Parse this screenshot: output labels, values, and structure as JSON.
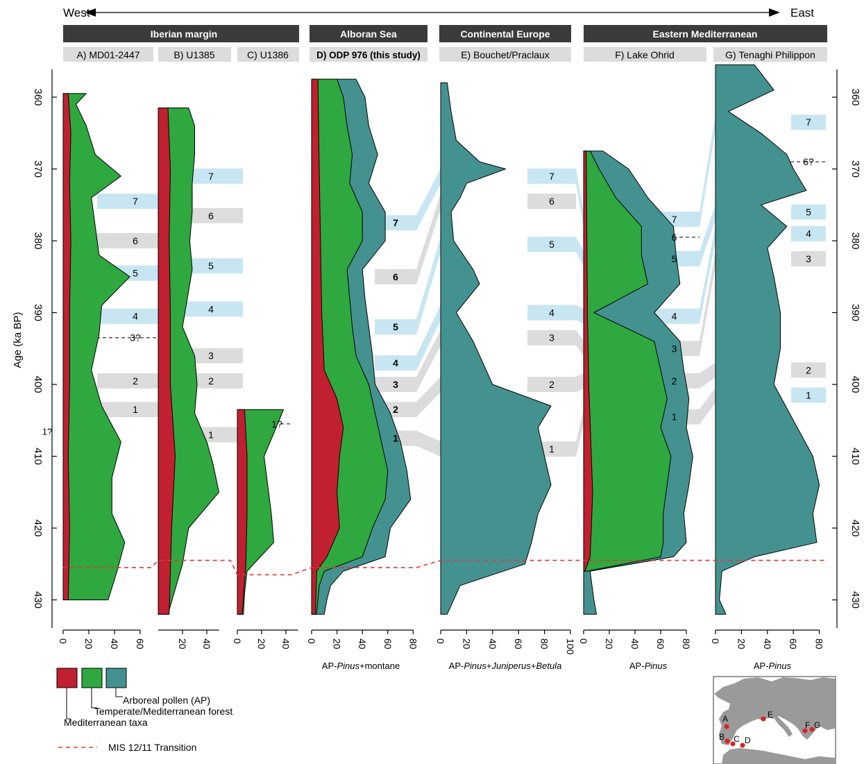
{
  "header": {
    "west": "West",
    "east": "East",
    "regions": [
      "Iberian margin",
      "Alboran Sea",
      "Continental Europe",
      "Eastern Mediterranean"
    ]
  },
  "y_axis": {
    "label": "Age (ka BP)",
    "ticks": [
      360,
      370,
      380,
      390,
      400,
      410,
      420,
      430
    ]
  },
  "x_axis_labels": {
    "D": [
      "AP-",
      "Pinus",
      "+montane"
    ],
    "E": [
      "AP-",
      "Pinus",
      "+",
      "Juniperus",
      "+",
      "Betula"
    ],
    "F": [
      "AP-",
      "Pinus"
    ],
    "G": [
      "AP-",
      "Pinus"
    ]
  },
  "legend": {
    "items": [
      {
        "label": "Arboreal pollen (AP)",
        "color": "#44928f"
      },
      {
        "label": "Temperate/Mediterranean forest",
        "color": "#2ea83f"
      },
      {
        "label": "Mediterranean taxa",
        "color": "#c0202f"
      }
    ],
    "transition": "MIS 12/11 Transition"
  },
  "map": {
    "sites": [
      "A",
      "B",
      "C",
      "D",
      "E",
      "F",
      "G"
    ]
  },
  "chart_data": {
    "type": "area",
    "y_unit": "ka BP",
    "ylim": [
      355,
      433
    ],
    "mis_transition_ka": {
      "A": 425.5,
      "B": 424.5,
      "C": 426.5,
      "D": 425.5,
      "E": 424.5,
      "F": 424.5,
      "G": 424.5
    },
    "cores": [
      {
        "id": "A",
        "label": "A) MD01-2447",
        "xticks": [
          0,
          20,
          40,
          60
        ],
        "markers": [
          {
            "label": "7",
            "age": 374.5,
            "type": "warm"
          },
          {
            "label": "6",
            "age": 380,
            "type": "cold"
          },
          {
            "label": "5",
            "age": 384.5,
            "type": "warm"
          },
          {
            "label": "4",
            "age": 390.5,
            "type": "warm"
          },
          {
            "label": "3?",
            "age": 393.5,
            "type": "dashed"
          },
          {
            "label": "2",
            "age": 399.5,
            "type": "cold"
          },
          {
            "label": "1",
            "age": 403.5,
            "type": "cold"
          },
          {
            "label": "1?",
            "age": 406.5,
            "type": "plain"
          }
        ],
        "series": [
          {
            "name": "Temperate/Mediterranean forest",
            "ages": [
              359.5,
              361,
              364,
              368,
              371,
              374,
              378,
              382,
              385,
              389,
              393,
              398,
              403,
              408,
              413,
              418,
              422,
              426,
              430
            ],
            "values": [
              18,
              10,
              18,
              25,
              45,
              22,
              25,
              28,
              52,
              30,
              28,
              22,
              30,
              45,
              38,
              38,
              48,
              42,
              35
            ]
          },
          {
            "name": "Mediterranean taxa",
            "ages": [
              359.5,
              365,
              372,
              380,
              390,
              400,
              410,
              420,
              430
            ],
            "values": [
              4,
              6,
              5,
              6,
              5,
              5,
              4,
              5,
              4
            ]
          }
        ]
      },
      {
        "id": "B",
        "label": "B) U1385",
        "xticks": [
          20,
          40
        ],
        "markers": [
          {
            "label": "7",
            "age": 371,
            "type": "warm"
          },
          {
            "label": "6",
            "age": 376.5,
            "type": "cold"
          },
          {
            "label": "5",
            "age": 383.5,
            "type": "warm"
          },
          {
            "label": "4",
            "age": 389.5,
            "type": "warm"
          },
          {
            "label": "3",
            "age": 396,
            "type": "cold"
          },
          {
            "label": "2",
            "age": 399.5,
            "type": "cold"
          },
          {
            "label": "1",
            "age": 407,
            "type": "cold"
          }
        ],
        "series": [
          {
            "name": "Temperate/Mediterranean forest",
            "ages": [
              361.5,
              364,
              368,
              372,
              376,
              380,
              384,
              388,
              392,
              396,
              400,
              404,
              408,
              411,
              415,
              420,
              425,
              432
            ],
            "values": [
              25,
              30,
              30,
              28,
              28,
              26,
              28,
              24,
              20,
              30,
              32,
              30,
              40,
              45,
              50,
              25,
              20,
              8
            ]
          },
          {
            "name": "Mediterranean taxa",
            "ages": [
              361.5,
              370,
              380,
              390,
              400,
              410,
              420,
              432
            ],
            "values": [
              8,
              10,
              9,
              10,
              10,
              14,
              11,
              9
            ]
          }
        ]
      },
      {
        "id": "C",
        "label": "C) U1386",
        "xticks": [
          0,
          20,
          40
        ],
        "markers": [
          {
            "label": "1?",
            "age": 405.5,
            "type": "dashed"
          }
        ],
        "series": [
          {
            "name": "Temperate/Mediterranean forest",
            "ages": [
              403.5,
              406,
              410,
              414,
              418,
              422,
              426,
              429,
              432
            ],
            "values": [
              38,
              32,
              22,
              25,
              28,
              30,
              8,
              6,
              5
            ]
          },
          {
            "name": "Mediterranean taxa",
            "ages": [
              403.5,
              410,
              418,
              425,
              432
            ],
            "values": [
              6,
              8,
              8,
              7,
              4
            ]
          }
        ]
      },
      {
        "id": "D",
        "label": "D) ODP 976 (this study)",
        "xticks": [
          0,
          20,
          40,
          60,
          80
        ],
        "markers": [
          {
            "label": "7",
            "age": 377.5,
            "type": "warm",
            "bold": true
          },
          {
            "label": "6",
            "age": 385,
            "type": "cold",
            "bold": true
          },
          {
            "label": "5",
            "age": 392,
            "type": "warm",
            "bold": true
          },
          {
            "label": "4",
            "age": 397,
            "type": "warm",
            "bold": true
          },
          {
            "label": "3",
            "age": 400,
            "type": "cold",
            "bold": true
          },
          {
            "label": "2",
            "age": 403.5,
            "type": "cold",
            "bold": true
          },
          {
            "label": "1",
            "age": 407.5,
            "type": "cold",
            "bold": true
          }
        ],
        "series": [
          {
            "name": "Arboreal pollen (AP)",
            "ages": [
              357.5,
              360,
              364,
              368,
              372,
              376,
              380,
              384,
              388,
              392,
              396,
              400,
              404,
              408,
              412,
              416,
              420,
              424,
              426,
              428,
              430,
              432
            ],
            "values": [
              35,
              42,
              45,
              52,
              45,
              58,
              58,
              40,
              42,
              45,
              48,
              50,
              62,
              70,
              75,
              78,
              62,
              58,
              25,
              15,
              12,
              10
            ]
          },
          {
            "name": "Temperate/Mediterranean forest",
            "ages": [
              357.5,
              360,
              364,
              368,
              372,
              376,
              380,
              384,
              388,
              392,
              396,
              400,
              404,
              408,
              412,
              416,
              420,
              424,
              426,
              428,
              430,
              432
            ],
            "values": [
              20,
              25,
              28,
              32,
              30,
              40,
              40,
              28,
              30,
              32,
              35,
              45,
              50,
              55,
              60,
              58,
              48,
              40,
              10,
              6,
              5,
              4
            ]
          },
          {
            "name": "Mediterranean taxa",
            "ages": [
              357.5,
              370,
              380,
              390,
              398,
              402,
              406,
              410,
              415,
              420,
              424,
              426,
              432
            ],
            "values": [
              5,
              6,
              7,
              8,
              10,
              20,
              25,
              22,
              20,
              22,
              12,
              4,
              3
            ]
          }
        ]
      },
      {
        "id": "E",
        "label": "E) Bouchet/Praclaux",
        "xticks": [
          0,
          20,
          40,
          60,
          80,
          100
        ],
        "markers": [
          {
            "label": "7",
            "age": 371,
            "type": "warm"
          },
          {
            "label": "6",
            "age": 374.5,
            "type": "cold"
          },
          {
            "label": "5",
            "age": 380.5,
            "type": "warm"
          },
          {
            "label": "4",
            "age": 390,
            "type": "warm"
          },
          {
            "label": "3",
            "age": 393.5,
            "type": "cold"
          },
          {
            "label": "2",
            "age": 400,
            "type": "cold"
          },
          {
            "label": "1",
            "age": 409,
            "type": "cold"
          }
        ],
        "series": [
          {
            "name": "Arboreal pollen (AP)",
            "ages": [
              358,
              362,
              366,
              369,
              370,
              372,
              374,
              376,
              380,
              384,
              386,
              390,
              394,
              398,
              400,
              403,
              406,
              410,
              414,
              418,
              422,
              425,
              428,
              432
            ],
            "values": [
              5,
              8,
              12,
              30,
              50,
              20,
              15,
              8,
              10,
              25,
              30,
              12,
              25,
              35,
              40,
              85,
              75,
              80,
              85,
              75,
              70,
              65,
              15,
              5
            ]
          }
        ]
      },
      {
        "id": "F",
        "label": "F) Lake Ohrid",
        "xticks": [
          0,
          20,
          40,
          60,
          80
        ],
        "markers": [
          {
            "label": "7",
            "age": 377,
            "type": "warm"
          },
          {
            "label": "6",
            "age": 379.5,
            "type": "dashed"
          },
          {
            "label": "5",
            "age": 382.5,
            "type": "warm"
          },
          {
            "label": "4",
            "age": 390.5,
            "type": "warm"
          },
          {
            "label": "3",
            "age": 395,
            "type": "cold"
          },
          {
            "label": "2",
            "age": 399.5,
            "type": "cold"
          },
          {
            "label": "1",
            "age": 404.5,
            "type": "cold"
          }
        ],
        "series": [
          {
            "name": "Arboreal pollen (AP)",
            "ages": [
              367.5,
              370,
              374,
              378,
              382,
              386,
              390,
              394,
              398,
              402,
              406,
              410,
              414,
              418,
              422,
              424,
              426,
              430,
              432
            ],
            "values": [
              15,
              35,
              50,
              70,
              72,
              75,
              55,
              75,
              78,
              82,
              80,
              85,
              82,
              78,
              80,
              70,
              5,
              8,
              10
            ]
          },
          {
            "name": "Temperate/Mediterranean forest",
            "ages": [
              367.5,
              370,
              374,
              378,
              382,
              386,
              390,
              394,
              398,
              402,
              406,
              410,
              414,
              418,
              422,
              424,
              426
            ],
            "values": [
              5,
              12,
              25,
              45,
              45,
              50,
              8,
              55,
              60,
              65,
              60,
              68,
              65,
              62,
              62,
              60,
              3
            ]
          },
          {
            "name": "Mediterranean taxa",
            "ages": [
              367.5,
              390,
              400,
              405,
              410,
              415,
              420,
              424,
              426
            ],
            "values": [
              2,
              3,
              4,
              5,
              6,
              7,
              6,
              5,
              1
            ]
          }
        ]
      },
      {
        "id": "G",
        "label": "G) Tenaghi Philippon",
        "xticks": [
          0,
          20,
          40,
          60,
          80
        ],
        "markers": [
          {
            "label": "7",
            "age": 363.5,
            "type": "warm"
          },
          {
            "label": "6?",
            "age": 369,
            "type": "dashed"
          },
          {
            "label": "5",
            "age": 376,
            "type": "warm"
          },
          {
            "label": "4",
            "age": 379,
            "type": "warm"
          },
          {
            "label": "3",
            "age": 382.5,
            "type": "cold"
          },
          {
            "label": "2",
            "age": 398,
            "type": "cold"
          },
          {
            "label": "1",
            "age": 401.5,
            "type": "warm"
          }
        ],
        "series": [
          {
            "name": "Arboreal pollen (AP)",
            "ages": [
              355.5,
              359,
              362,
              365,
              368,
              370,
              373,
              375,
              378,
              381,
              385,
              390,
              395,
              400,
              405,
              410,
              414,
              418,
              422,
              424,
              426,
              430,
              432
            ],
            "values": [
              30,
              45,
              10,
              35,
              55,
              60,
              70,
              35,
              55,
              40,
              45,
              50,
              50,
              45,
              60,
              75,
              80,
              75,
              78,
              30,
              5,
              3,
              8
            ]
          }
        ]
      }
    ]
  }
}
